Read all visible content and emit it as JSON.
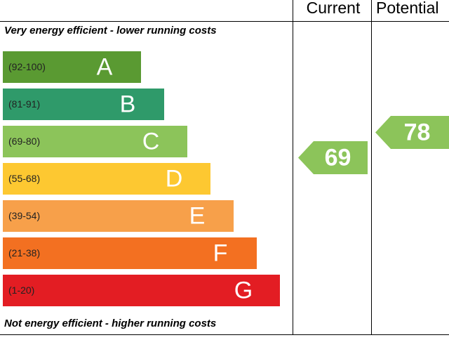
{
  "header": {
    "current": "Current",
    "potential": "Potential"
  },
  "top_note": "Very energy efficient - lower running costs",
  "bottom_note": "Not energy efficient - higher running costs",
  "bands": [
    {
      "range": "(92-100)",
      "letter": "A",
      "color": "#5a9a32"
    },
    {
      "range": "(81-91)",
      "letter": "B",
      "color": "#2f9a6a"
    },
    {
      "range": "(69-80)",
      "letter": "C",
      "color": "#8cc45a"
    },
    {
      "range": "(55-68)",
      "letter": "D",
      "color": "#fdc831"
    },
    {
      "range": "(39-54)",
      "letter": "E",
      "color": "#f7a04a"
    },
    {
      "range": "(21-38)",
      "letter": "F",
      "color": "#f37021"
    },
    {
      "range": "(1-20)",
      "letter": "G",
      "color": "#e31d23"
    }
  ],
  "current": {
    "value": 69,
    "color": "#8cc45a"
  },
  "potential": {
    "value": 78,
    "color": "#8cc45a"
  }
}
